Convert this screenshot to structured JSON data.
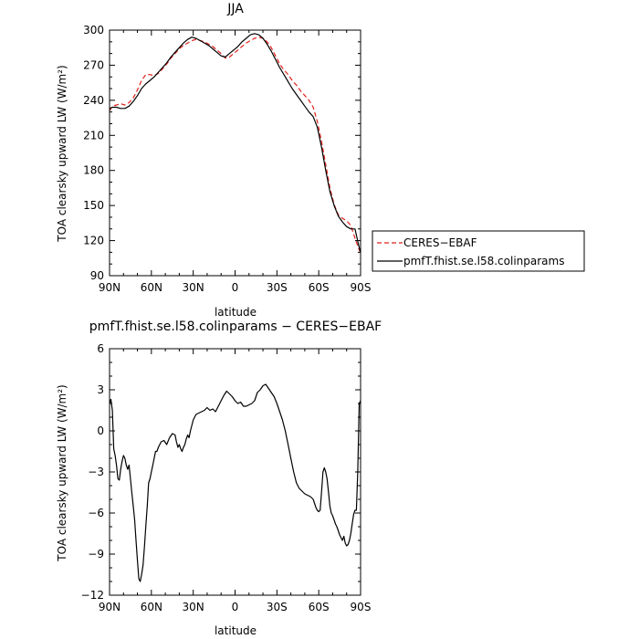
{
  "chart_data": [
    {
      "type": "line",
      "title": "JJA",
      "xlabel": "latitude",
      "ylabel": "TOA clearsky upward LW (W/m²)",
      "xlim": [
        90,
        -90
      ],
      "ylim": [
        90,
        300
      ],
      "x_ticks": [
        90,
        60,
        30,
        0,
        -30,
        -60,
        -90
      ],
      "x_tick_labels": [
        "90N",
        "60N",
        "30N",
        "0",
        "30S",
        "60S",
        "90S"
      ],
      "y_ticks": [
        90,
        120,
        150,
        180,
        210,
        240,
        270,
        300
      ],
      "y_tick_labels": [
        "90",
        "120",
        "150",
        "180",
        "210",
        "240",
        "270",
        "300"
      ],
      "legend_position": "right",
      "series": [
        {
          "name": "CERES−EBAF",
          "color": "#e0201b",
          "dash": "dashed",
          "x": [
            90,
            88,
            85,
            82,
            79,
            76,
            73,
            70,
            67,
            64,
            61,
            58,
            55,
            52,
            49,
            46,
            43,
            40,
            37,
            34,
            31,
            28,
            25,
            22,
            19,
            16,
            13,
            10,
            7,
            4,
            1,
            -2,
            -5,
            -8,
            -11,
            -14,
            -17,
            -20,
            -23,
            -26,
            -29,
            -32,
            -35,
            -38,
            -41,
            -44,
            -47,
            -50,
            -53,
            -56,
            -59,
            -62,
            -65,
            -68,
            -71,
            -74,
            -77,
            -80,
            -83,
            -86,
            -89,
            -90
          ],
          "y": [
            231,
            235,
            236,
            237,
            236,
            238,
            242,
            249,
            257,
            262,
            262,
            261,
            263,
            267,
            271,
            276,
            280,
            284,
            287,
            289,
            291,
            292,
            291,
            290,
            288,
            286,
            283,
            280,
            276,
            277,
            280,
            283,
            286,
            289,
            291,
            293,
            294,
            293,
            290,
            285,
            278,
            271,
            266,
            262,
            257,
            253,
            248,
            244,
            240,
            234,
            222,
            205,
            185,
            165,
            151,
            142,
            139,
            137,
            133,
            122,
            112,
            110
          ]
        },
        {
          "name": "pmfT.fhist.se.l58.colinparams",
          "color": "#000000",
          "dash": "solid",
          "x": [
            90,
            88,
            85,
            82,
            79,
            76,
            73,
            70,
            67,
            64,
            61,
            58,
            55,
            52,
            49,
            46,
            43,
            40,
            37,
            34,
            31,
            28,
            25,
            22,
            19,
            16,
            13,
            10,
            7,
            4,
            1,
            -2,
            -5,
            -8,
            -11,
            -14,
            -17,
            -20,
            -23,
            -26,
            -29,
            -32,
            -35,
            -38,
            -41,
            -44,
            -47,
            -50,
            -53,
            -56,
            -59,
            -62,
            -65,
            -68,
            -71,
            -74,
            -77,
            -80,
            -83,
            -86,
            -89,
            -90
          ],
          "y": [
            233,
            234,
            234,
            233,
            233,
            235,
            239,
            244,
            250,
            254,
            257,
            260,
            264,
            268,
            272,
            277,
            281,
            285,
            289,
            292,
            294,
            293,
            291,
            289,
            287,
            284,
            281,
            278,
            277,
            280,
            283,
            286,
            290,
            293,
            296,
            297,
            296,
            293,
            288,
            282,
            275,
            268,
            262,
            256,
            250,
            245,
            240,
            235,
            230,
            226,
            217,
            200,
            180,
            162,
            150,
            141,
            136,
            132,
            130,
            130,
            114,
            110
          ]
        }
      ]
    },
    {
      "type": "line",
      "title": "pmfT.fhist.se.l58.colinparams − CERES−EBAF",
      "xlabel": "latitude",
      "ylabel": "TOA clearsky upward LW (W/m²)",
      "xlim": [
        90,
        -90
      ],
      "ylim": [
        -12,
        6
      ],
      "x_ticks": [
        90,
        60,
        30,
        0,
        -30,
        -60,
        -90
      ],
      "x_tick_labels": [
        "90N",
        "60N",
        "30N",
        "0",
        "30S",
        "60S",
        "90S"
      ],
      "y_ticks": [
        -12,
        -9,
        -6,
        -3,
        0,
        3,
        6
      ],
      "y_tick_labels": [
        "−12",
        "−9",
        "−6",
        "−3",
        "0",
        "3",
        "6"
      ],
      "series": [
        {
          "color": "#000000",
          "dash": "solid",
          "x": [
            90,
            89,
            88,
            87,
            86,
            85,
            84,
            83,
            82,
            81,
            80,
            79,
            78,
            77,
            76,
            75,
            74,
            73,
            72,
            71,
            70,
            69,
            68,
            67,
            66,
            65,
            64,
            63,
            62,
            61,
            60,
            59,
            58,
            57,
            56,
            55,
            53,
            51,
            49,
            47,
            45,
            43,
            42,
            41,
            40,
            39,
            38,
            37,
            36,
            35,
            34,
            33,
            32,
            30,
            28,
            26,
            24,
            22,
            20,
            18,
            16,
            14,
            12,
            10,
            8,
            6,
            4,
            2,
            0,
            -2,
            -4,
            -6,
            -8,
            -10,
            -12,
            -14,
            -16,
            -18,
            -20,
            -22,
            -24,
            -26,
            -28,
            -30,
            -32,
            -34,
            -36,
            -38,
            -40,
            -42,
            -44,
            -46,
            -48,
            -50,
            -52,
            -54,
            -56,
            -57,
            -58,
            -59,
            -60,
            -61,
            -62,
            -63,
            -64,
            -65,
            -66,
            -67,
            -68,
            -69,
            -70,
            -71,
            -72,
            -73,
            -74,
            -75,
            -76,
            -77,
            -78,
            -79,
            -80,
            -81,
            -82,
            -83,
            -84,
            -85,
            -86,
            -87,
            -88,
            -89,
            -90
          ],
          "y": [
            2.0,
            2.3,
            1.5,
            -1.3,
            -1.8,
            -2.5,
            -3.5,
            -3.6,
            -2.8,
            -2.2,
            -1.8,
            -2.0,
            -2.5,
            -2.8,
            -2.5,
            -3.5,
            -4.5,
            -5.5,
            -6.5,
            -8.0,
            -9.5,
            -10.8,
            -11.0,
            -10.5,
            -9.8,
            -8.5,
            -7.0,
            -5.5,
            -3.8,
            -3.5,
            -3.0,
            -2.5,
            -2.0,
            -1.5,
            -1.5,
            -1.2,
            -0.8,
            -0.7,
            -1.0,
            -0.5,
            -0.2,
            -0.3,
            -0.8,
            -1.2,
            -1.0,
            -1.3,
            -1.5,
            -1.2,
            -1.0,
            -0.6,
            -0.3,
            -0.5,
            0.0,
            0.8,
            1.2,
            1.3,
            1.4,
            1.5,
            1.7,
            1.5,
            1.6,
            1.4,
            1.8,
            2.2,
            2.6,
            2.9,
            2.7,
            2.5,
            2.2,
            2.0,
            2.1,
            1.8,
            1.8,
            1.9,
            2.0,
            2.2,
            2.8,
            3.0,
            3.3,
            3.4,
            3.1,
            2.8,
            2.5,
            2.0,
            1.4,
            0.8,
            0.0,
            -1.0,
            -2.0,
            -3.0,
            -3.8,
            -4.2,
            -4.4,
            -4.6,
            -4.7,
            -4.8,
            -5.0,
            -5.3,
            -5.6,
            -5.8,
            -5.9,
            -5.8,
            -4.5,
            -3.0,
            -2.7,
            -3.0,
            -3.5,
            -4.5,
            -5.5,
            -6.0,
            -6.2,
            -6.5,
            -6.8,
            -7.0,
            -7.3,
            -7.6,
            -7.8,
            -8.0,
            -7.7,
            -8.2,
            -8.4,
            -8.3,
            -8.0,
            -7.5,
            -6.8,
            -6.1,
            -5.8,
            -5.8,
            -3.0,
            2.0,
            2.2
          ]
        }
      ]
    }
  ]
}
